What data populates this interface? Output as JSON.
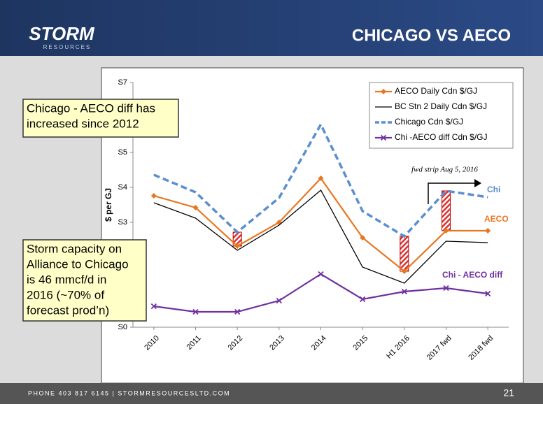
{
  "header": {
    "logo": "STORM",
    "logo_sub": "RESOURCES",
    "title": "CHICAGO VS AECO"
  },
  "chart_data": {
    "type": "line",
    "y_label": "$ per GJ",
    "categories": [
      "2010",
      "2011",
      "2012",
      "2013",
      "2014",
      "2015",
      "H1 2016",
      "2017 fwd",
      "2018 fwd"
    ],
    "series": [
      {
        "name": "AECO Daily Cdn $/GJ",
        "color": "#e87722",
        "marker": "diamond",
        "dash": false,
        "values": [
          3.76,
          3.42,
          2.32,
          3.0,
          4.26,
          2.56,
          1.6,
          2.76,
          2.76
        ]
      },
      {
        "name": "BC Stn 2 Daily Cdn $/GJ",
        "color": "#000000",
        "marker": "none",
        "dash": false,
        "values": [
          3.56,
          3.12,
          2.2,
          2.92,
          3.92,
          1.72,
          1.26,
          2.46,
          2.42
        ]
      },
      {
        "name": "Chicago Cdn $/GJ",
        "color": "#5b8fd0",
        "marker": "none",
        "dash": true,
        "values": [
          4.36,
          3.86,
          2.72,
          3.7,
          5.8,
          3.32,
          2.6,
          3.9,
          3.72
        ]
      },
      {
        "name": "Chi -AECO diff Cdn $/GJ",
        "color": "#7030a0",
        "marker": "x",
        "dash": false,
        "values": [
          0.6,
          0.44,
          0.44,
          0.76,
          1.52,
          0.8,
          1.02,
          1.12,
          0.96
        ]
      }
    ],
    "ylim": [
      0,
      7
    ],
    "yticks": [
      {
        "value": 0,
        "label": "S0"
      },
      {
        "value": 3,
        "label": "S3"
      },
      {
        "value": 4,
        "label": "S4"
      },
      {
        "value": 5,
        "label": "S5"
      },
      {
        "value": 7,
        "label": "S7"
      }
    ],
    "grid": false,
    "legend": "top-right",
    "annotations": {
      "fwd_strip": "fwd strip Aug 5, 2016",
      "chi": "Chi",
      "aeco": "AECO",
      "diff": "Chi - AECO diff"
    }
  },
  "callouts": [
    [
      "Chicago - AECO diff has",
      "increased since 2012"
    ],
    [
      "Storm capacity on",
      "Alliance to Chicago",
      "is 46 mmcf/d in",
      "2016 (~70% of",
      "forecast prod’n)"
    ]
  ],
  "footer": {
    "contact": "PHONE 403 817 6145  |  STORMRESOURCESLTD.COM",
    "page": "21"
  }
}
